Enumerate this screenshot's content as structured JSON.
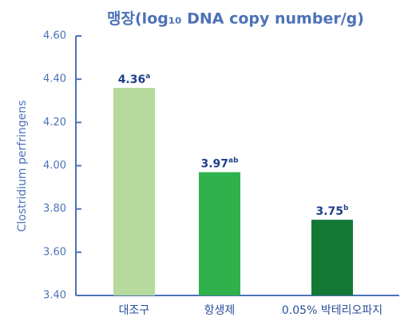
{
  "chart_data": {
    "type": "bar",
    "title": "맹장(log₁₀ DNA copy number/g)",
    "y_label": "Clostridium perfringens",
    "categories": [
      "대조구",
      "항생제",
      "0.05% 박테리오파지"
    ],
    "values": [
      4.36,
      3.97,
      3.75
    ],
    "significance": [
      "a",
      "ab",
      "b"
    ],
    "colors": [
      "#b6da9e",
      "#2fb24c",
      "#137836"
    ],
    "ylim": [
      3.4,
      4.6
    ],
    "yticks": [
      {
        "value": 3.4,
        "label": "3.40"
      },
      {
        "value": 3.6,
        "label": "3.60"
      },
      {
        "value": 3.8,
        "label": "3.80"
      },
      {
        "value": 4.0,
        "label": "4.00"
      },
      {
        "value": 4.2,
        "label": "4.20"
      },
      {
        "value": 4.4,
        "label": "4.40"
      },
      {
        "value": 4.6,
        "label": "4.60"
      }
    ]
  }
}
